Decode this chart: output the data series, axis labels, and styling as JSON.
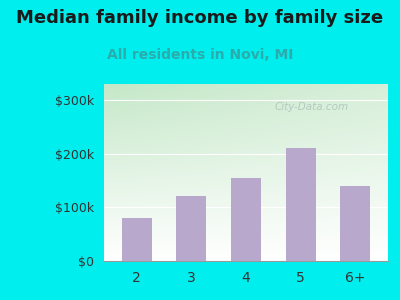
{
  "title": "Median family income by family size",
  "subtitle": "All residents in Novi, MI",
  "categories": [
    "2",
    "3",
    "4",
    "5",
    "6+"
  ],
  "values": [
    80000,
    122000,
    155000,
    210000,
    140000
  ],
  "bar_color": "#b8a8cc",
  "title_color": "#1a1a1a",
  "subtitle_color": "#2aacac",
  "outer_bg": "#00eeee",
  "plot_bg_top_left": "#c5e8c8",
  "plot_bg_bottom_right": "#f8fff8",
  "yticks": [
    0,
    100000,
    200000,
    300000
  ],
  "ytick_labels": [
    "$0",
    "$100k",
    "$200k",
    "$300k"
  ],
  "ylim": [
    0,
    330000
  ],
  "watermark": "City-Data.com",
  "watermark_color": "#aabbbb",
  "title_fontsize": 13,
  "subtitle_fontsize": 10,
  "tick_fontsize": 9,
  "xtick_fontsize": 10
}
